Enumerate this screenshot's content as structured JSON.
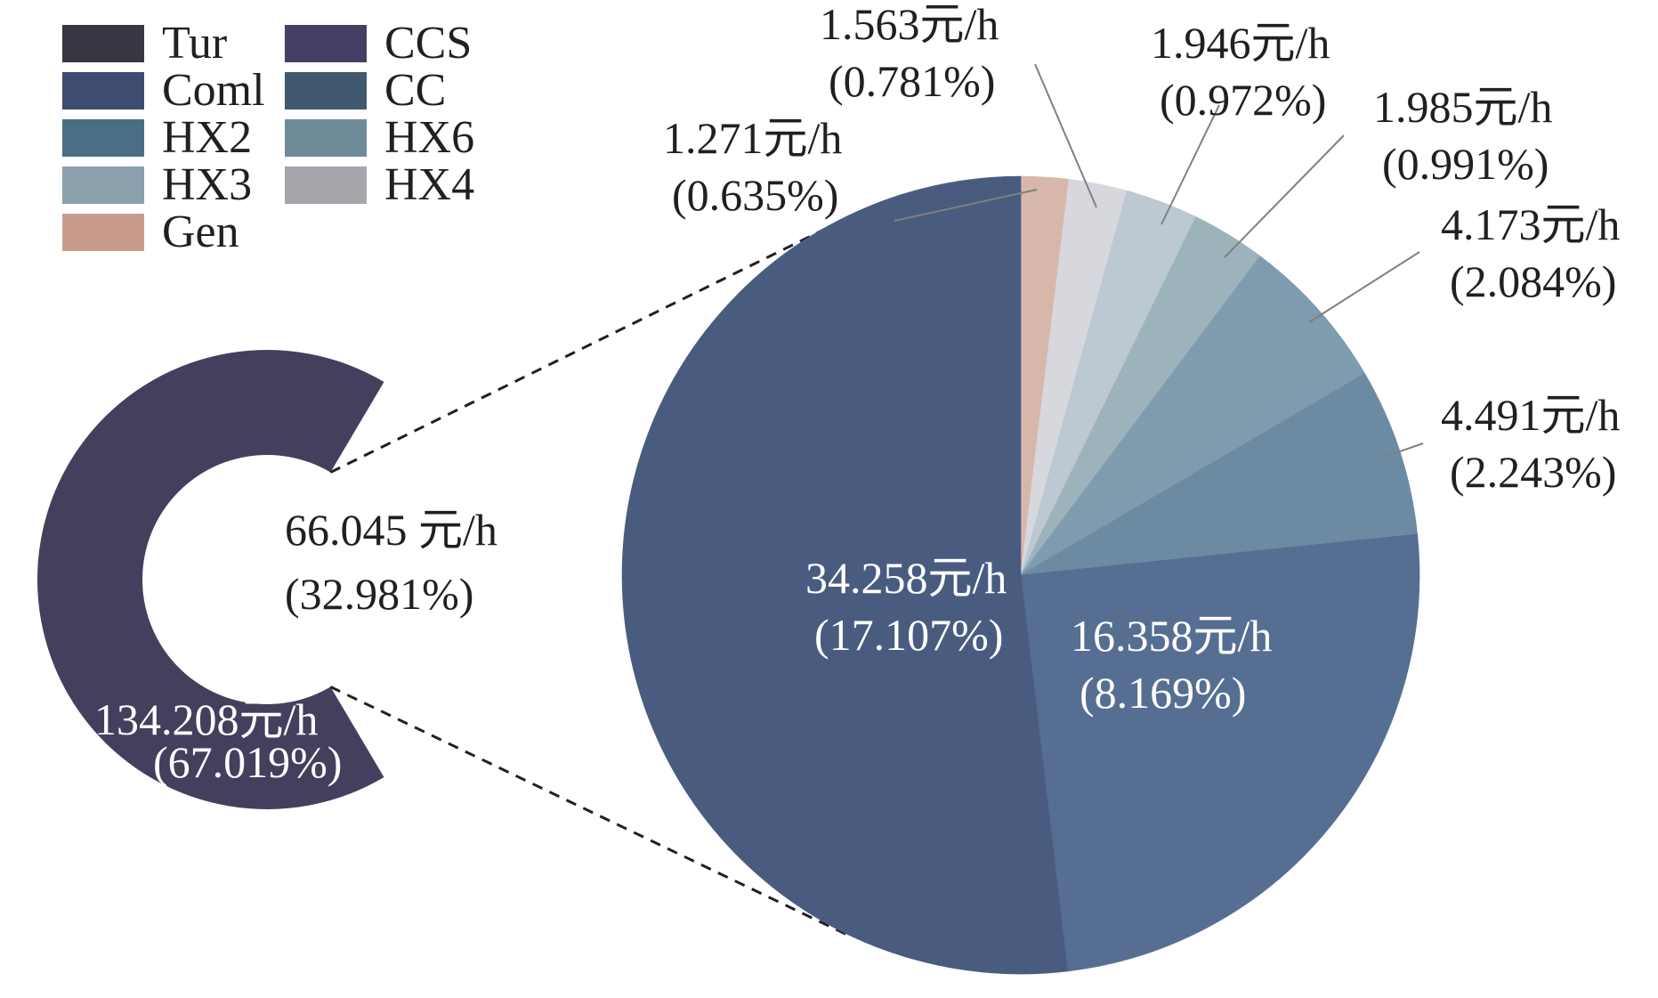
{
  "chart_data": {
    "type": "pie",
    "legend": {
      "placement": "top-left",
      "items": [
        {
          "name": "Tur",
          "color": "#3a3542"
        },
        {
          "name": "CCS",
          "color": "#453f66"
        },
        {
          "name": "Coml",
          "color": "#3f4c72"
        },
        {
          "name": "CC",
          "color": "#41596e"
        },
        {
          "name": "HX2",
          "color": "#4a6f85"
        },
        {
          "name": "HX6",
          "color": "#6f8b99"
        },
        {
          "name": "HX3",
          "color": "#8aa0ad"
        },
        {
          "name": "HX4",
          "color": "#a4a6ab"
        },
        {
          "name": "Gen",
          "color": "#c99b8c"
        }
      ]
    },
    "overview": {
      "slices": [
        {
          "value": 134.208,
          "label": "134.208元/h",
          "pct": "(67.019%)",
          "color": "#433f5d"
        },
        {
          "value": 66.045,
          "label": "66.045 元/h",
          "pct": "(32.981%)",
          "color": "#ffffff"
        }
      ]
    },
    "detail": {
      "slices": [
        {
          "value": 1.271,
          "label": "1.271元/h",
          "pct": "(0.635%)",
          "color": "#d8b7ab"
        },
        {
          "value": 1.563,
          "label": "1.563元/h",
          "pct": "(0.781%)",
          "color": "#d6d8de"
        },
        {
          "value": 1.946,
          "label": "1.946元/h",
          "pct": "(0.972%)",
          "color": "#bcc8d2"
        },
        {
          "value": 1.985,
          "label": "1.985元/h",
          "pct": "(0.991%)",
          "color": "#9db3bc"
        },
        {
          "value": 4.173,
          "label": "4.173元/h",
          "pct": "(2.084%)",
          "color": "#7f9cae"
        },
        {
          "value": 4.491,
          "label": "4.491元/h",
          "pct": "(2.243%)",
          "color": "#6d8aa3"
        },
        {
          "value": 16.358,
          "label": "16.358元/h",
          "pct": "(8.169%)",
          "color": "#566e92"
        },
        {
          "value": 34.258,
          "label": "34.258元/h",
          "pct": "(17.107%)",
          "color": "#4a5b80"
        }
      ]
    }
  }
}
